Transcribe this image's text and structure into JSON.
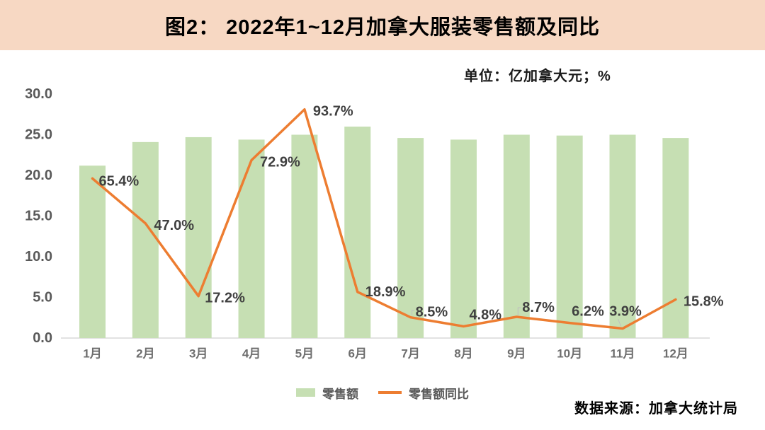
{
  "header": {
    "title": "图2： 2022年1~12月加拿大服装零售额及同比"
  },
  "unit_note": "单位：亿加拿大元；%",
  "source_note": "数据来源：加拿大统计局",
  "legend": {
    "bar_label": "零售额",
    "line_label": "零售额同比"
  },
  "colors": {
    "banner_bg": "#F7D8C3",
    "bar_fill": "#C6DFB3",
    "line_stroke": "#ED7D31",
    "axis_line": "#D9D9D9",
    "tick_label": "#595959",
    "x_label": "#6E6E6E",
    "data_label": "#404040"
  },
  "chart_data": {
    "type": "bar",
    "subtype": "combo bar + line (dual axis)",
    "title": "图2： 2022年1~12月加拿大服装零售额及同比",
    "unit": "亿加拿大元；%",
    "categories": [
      "1月",
      "2月",
      "3月",
      "4月",
      "5月",
      "6月",
      "7月",
      "8月",
      "9月",
      "10月",
      "11月",
      "12月"
    ],
    "series": [
      {
        "name": "零售额",
        "type": "bar",
        "axis": "primary",
        "values": [
          21.2,
          24.1,
          24.7,
          24.4,
          25.0,
          26.0,
          24.6,
          24.4,
          25.0,
          24.9,
          25.0,
          24.6
        ]
      },
      {
        "name": "零售额同比",
        "type": "line",
        "axis": "secondary",
        "values": [
          65.4,
          47.0,
          17.2,
          72.9,
          93.7,
          18.9,
          8.5,
          4.8,
          8.7,
          6.2,
          3.9,
          15.8
        ],
        "point_labels": [
          "65.4%",
          "47.0%",
          "17.2%",
          "72.9%",
          "93.7%",
          "18.9%",
          "8.5%",
          "4.8%",
          "8.7%",
          "6.2%",
          "3.9%",
          "15.8%"
        ]
      }
    ],
    "primary_axis": {
      "min": 0,
      "max": 30,
      "tick_labels": [
        "30.0",
        "25.0",
        "20.0",
        "15.0",
        "10.0",
        "5.0",
        "0.0"
      ]
    },
    "secondary_axis": {
      "min": 0,
      "max": 100,
      "tick_labels": []
    },
    "legend_position": "bottom",
    "grid": false,
    "source": "数据来源：加拿大统计局"
  }
}
